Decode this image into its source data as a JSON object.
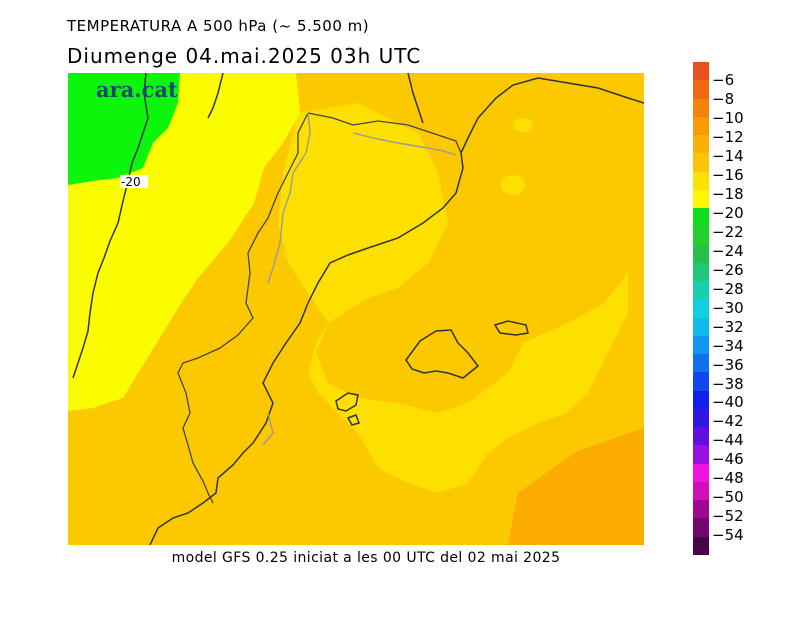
{
  "header": {
    "title": "TEMPERATURA A 500 hPa (~ 5.500 m)",
    "subtitle": "Diumenge  04.mai.2025 03h UTC"
  },
  "watermark": "ara.cat",
  "isoline_label": "-20",
  "footer": "model GFS 0.25 iniciat a les 00 UTC del 02 mai 2025",
  "colorbar": {
    "labels": [
      "−6",
      "−8",
      "−10",
      "−12",
      "−14",
      "−16",
      "−18",
      "−20",
      "−22",
      "−24",
      "−26",
      "−28",
      "−30",
      "−32",
      "−34",
      "−36",
      "−38",
      "−40",
      "−42",
      "−44",
      "−46",
      "−48",
      "−50",
      "−52",
      "−54"
    ],
    "colors": [
      "#e8501e",
      "#ee6a12",
      "#f3830c",
      "#f79a06",
      "#fab004",
      "#fcc404",
      "#fde004",
      "#fcf600",
      "#10dc20",
      "#22d030",
      "#28c048",
      "#20c878",
      "#18d0b0",
      "#10d0e0",
      "#10b8f0",
      "#1098f0",
      "#1070f0",
      "#1048f0",
      "#1020e8",
      "#3018e0",
      "#6010e0",
      "#9810e0",
      "#f010e0",
      "#d010b8",
      "#a00890",
      "#700870",
      "#480448"
    ]
  },
  "colors": {
    "green_region": "#0cf60c",
    "yellow_region": "#fcfc00",
    "light_orange": "#fde000",
    "medium_orange": "#fcc800",
    "dark_orange": "#fcac00",
    "coast_line": "#333333",
    "border_line": "#9a9a9a",
    "watermark": "#1a4a6a"
  }
}
